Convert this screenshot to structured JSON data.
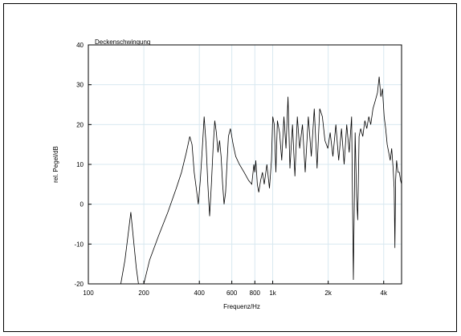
{
  "chart_data": {
    "type": "line",
    "title": "Deckenschwingung",
    "xlabel": "Frequenz/Hz",
    "ylabel": "rel. Pegel/dB",
    "x_scale": "log",
    "xlim": [
      100,
      5000
    ],
    "ylim": [
      -20,
      40
    ],
    "x_ticks": [
      100,
      200,
      400,
      600,
      800,
      1000,
      2000,
      4000
    ],
    "x_tick_labels": [
      "100",
      "200",
      "400",
      "600",
      "800",
      "1k",
      "2k",
      "4k"
    ],
    "y_ticks": [
      -20,
      -10,
      0,
      10,
      20,
      30,
      40
    ],
    "y_tick_labels": [
      "-20",
      "-10",
      "0",
      "10",
      "20",
      "30",
      "40"
    ],
    "grid": true,
    "colors": {
      "line": "#000000",
      "grid": "#d8e8f0",
      "frame": "#000000"
    },
    "series": [
      {
        "values": [
          [
            150,
            -20
          ],
          [
            158,
            -14
          ],
          [
            165,
            -7
          ],
          [
            170,
            -2
          ],
          [
            175,
            -8
          ],
          [
            182,
            -16
          ],
          [
            187,
            -22
          ],
          [
            200,
            -20
          ],
          [
            215,
            -14
          ],
          [
            240,
            -8
          ],
          [
            270,
            -2
          ],
          [
            300,
            4
          ],
          [
            320,
            8
          ],
          [
            340,
            13
          ],
          [
            355,
            17
          ],
          [
            365,
            15
          ],
          [
            375,
            8
          ],
          [
            385,
            4
          ],
          [
            395,
            0
          ],
          [
            405,
            6
          ],
          [
            415,
            14
          ],
          [
            425,
            22
          ],
          [
            435,
            15
          ],
          [
            445,
            5
          ],
          [
            455,
            -3
          ],
          [
            465,
            5
          ],
          [
            475,
            14
          ],
          [
            485,
            21
          ],
          [
            495,
            18
          ],
          [
            505,
            13
          ],
          [
            515,
            16
          ],
          [
            525,
            12
          ],
          [
            535,
            5
          ],
          [
            545,
            0
          ],
          [
            555,
            3
          ],
          [
            565,
            10
          ],
          [
            575,
            17
          ],
          [
            590,
            19
          ],
          [
            610,
            15
          ],
          [
            630,
            12
          ],
          [
            660,
            10
          ],
          [
            700,
            8
          ],
          [
            740,
            6
          ],
          [
            770,
            5
          ],
          [
            790,
            10
          ],
          [
            800,
            8
          ],
          [
            810,
            11
          ],
          [
            825,
            5
          ],
          [
            840,
            3
          ],
          [
            860,
            6
          ],
          [
            880,
            8
          ],
          [
            900,
            5
          ],
          [
            930,
            10
          ],
          [
            960,
            4
          ],
          [
            985,
            11
          ],
          [
            1000,
            22
          ],
          [
            1020,
            20
          ],
          [
            1040,
            8
          ],
          [
            1060,
            21
          ],
          [
            1090,
            18
          ],
          [
            1120,
            11
          ],
          [
            1150,
            22
          ],
          [
            1180,
            14
          ],
          [
            1210,
            27
          ],
          [
            1240,
            9
          ],
          [
            1280,
            20
          ],
          [
            1320,
            7
          ],
          [
            1360,
            22
          ],
          [
            1400,
            14
          ],
          [
            1450,
            20
          ],
          [
            1500,
            8
          ],
          [
            1560,
            22
          ],
          [
            1620,
            12
          ],
          [
            1680,
            24
          ],
          [
            1740,
            9
          ],
          [
            1800,
            24
          ],
          [
            1860,
            22
          ],
          [
            1920,
            16
          ],
          [
            1990,
            14
          ],
          [
            2050,
            18
          ],
          [
            2120,
            12
          ],
          [
            2200,
            20
          ],
          [
            2280,
            11
          ],
          [
            2360,
            19
          ],
          [
            2440,
            10
          ],
          [
            2520,
            20
          ],
          [
            2600,
            13
          ],
          [
            2680,
            22
          ],
          [
            2740,
            -19
          ],
          [
            2800,
            18
          ],
          [
            2850,
            2
          ],
          [
            2890,
            -4
          ],
          [
            2940,
            17
          ],
          [
            3000,
            19
          ],
          [
            3080,
            17
          ],
          [
            3160,
            21
          ],
          [
            3240,
            19
          ],
          [
            3320,
            22
          ],
          [
            3400,
            20
          ],
          [
            3500,
            24
          ],
          [
            3600,
            26
          ],
          [
            3700,
            28
          ],
          [
            3780,
            32
          ],
          [
            3860,
            27
          ],
          [
            3940,
            29
          ],
          [
            4020,
            22
          ],
          [
            4100,
            19
          ],
          [
            4180,
            15
          ],
          [
            4260,
            13
          ],
          [
            4340,
            11
          ],
          [
            4420,
            14
          ],
          [
            4500,
            9
          ],
          [
            4560,
            4
          ],
          [
            4600,
            -11
          ],
          [
            4640,
            6
          ],
          [
            4700,
            11
          ],
          [
            4780,
            8
          ],
          [
            4860,
            8
          ],
          [
            4940,
            6
          ],
          [
            5000,
            5
          ]
        ]
      }
    ]
  }
}
